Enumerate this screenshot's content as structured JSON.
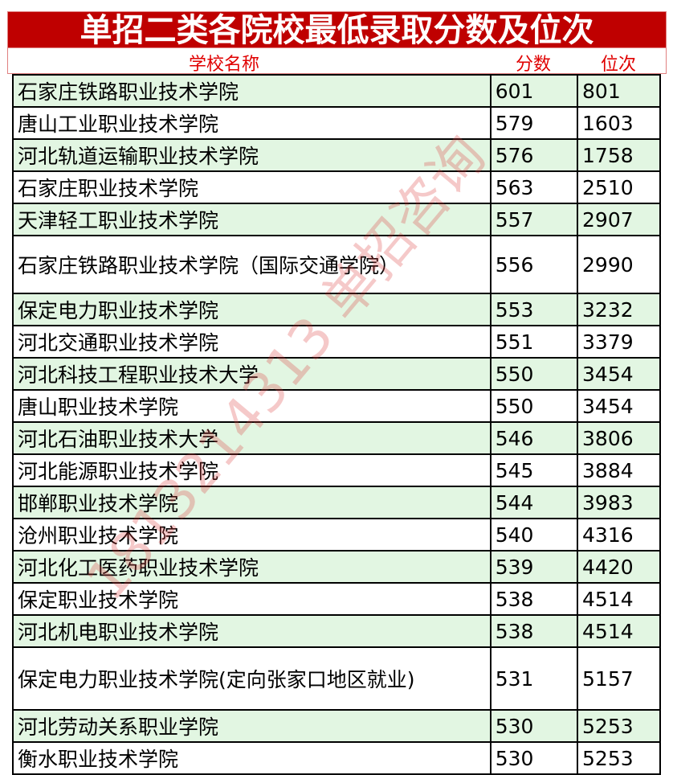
{
  "title": "单招二类各院校最低录取分数及位次",
  "headers": {
    "name": "学校名称",
    "score": "分数",
    "rank": "位次"
  },
  "colors": {
    "title_bg": "#bf0000",
    "header_text": "#e00000",
    "stripe": "#e2f6e2"
  },
  "watermark": "1813214313 单招咨询",
  "rows": [
    {
      "name": "石家庄铁路职业技术学院",
      "score": "601",
      "rank": "801"
    },
    {
      "name": "唐山工业职业技术学院",
      "score": "579",
      "rank": "1603"
    },
    {
      "name": "河北轨道运输职业技术学院",
      "score": "576",
      "rank": "1758"
    },
    {
      "name": "石家庄职业技术学院",
      "score": "563",
      "rank": "2510"
    },
    {
      "name": "天津轻工职业技术学院",
      "score": "557",
      "rank": "2907"
    },
    {
      "name": "石家庄铁路职业技术学院（国际交通学院）",
      "score": "556",
      "rank": "2990"
    },
    {
      "name": "保定电力职业技术学院",
      "score": "553",
      "rank": "3232"
    },
    {
      "name": "河北交通职业技术学院",
      "score": "551",
      "rank": "3379"
    },
    {
      "name": "河北科技工程职业技术大学",
      "score": "550",
      "rank": "3454"
    },
    {
      "name": "唐山职业技术学院",
      "score": "550",
      "rank": "3454"
    },
    {
      "name": "河北石油职业技术大学",
      "score": "546",
      "rank": "3806"
    },
    {
      "name": "河北能源职业技术学院",
      "score": "545",
      "rank": "3884"
    },
    {
      "name": "邯郸职业技术学院",
      "score": "544",
      "rank": "3983"
    },
    {
      "name": "沧州职业技术学院",
      "score": "540",
      "rank": "4316"
    },
    {
      "name": "河北化工医药职业技术学院",
      "score": "539",
      "rank": "4420"
    },
    {
      "name": "保定职业技术学院",
      "score": "538",
      "rank": "4514"
    },
    {
      "name": "河北机电职业技术学院",
      "score": "538",
      "rank": "4514"
    },
    {
      "name": "保定电力职业技术学院(定向张家口地区就业)",
      "score": "531",
      "rank": "5157"
    },
    {
      "name": "河北劳动关系职业学院",
      "score": "530",
      "rank": "5253"
    },
    {
      "name": "衡水职业技术学院",
      "score": "530",
      "rank": "5253"
    }
  ]
}
